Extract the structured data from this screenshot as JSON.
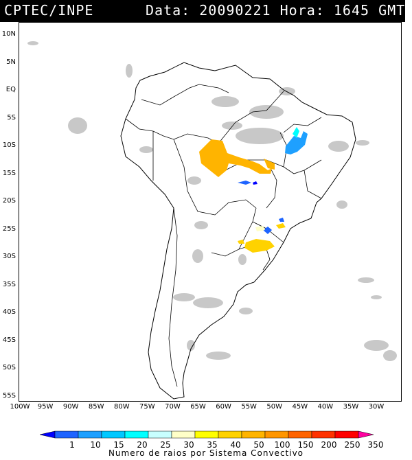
{
  "header": {
    "source": "CPTEC/INPE",
    "datetime": "Data: 20090221  Hora: 1645 GMT"
  },
  "map": {
    "lat_labels": [
      "10N",
      "5N",
      "EQ",
      "5S",
      "10S",
      "15S",
      "20S",
      "25S",
      "30S",
      "35S",
      "40S",
      "45S",
      "50S",
      "55S"
    ],
    "lon_labels": [
      "100W",
      "95W",
      "90W",
      "85W",
      "80W",
      "75W",
      "70W",
      "65W",
      "60W",
      "55W",
      "50W",
      "45W",
      "40W",
      "35W",
      "30W"
    ],
    "lat_values": [
      10,
      5,
      0,
      -5,
      -10,
      -15,
      -20,
      -25,
      -30,
      -35,
      -40,
      -45,
      -50,
      -55
    ],
    "lon_values": [
      -100,
      -95,
      -90,
      -85,
      -80,
      -75,
      -70,
      -65,
      -60,
      -55,
      -50,
      -45,
      -40,
      -35,
      -30
    ],
    "colors": {
      "cloud_gray": "#c8c8c8",
      "border": "#000000"
    }
  },
  "legend": {
    "caption": "Numero de raios por Sistema Convectivo",
    "ticks": [
      "1",
      "10",
      "15",
      "20",
      "25",
      "30",
      "35",
      "40",
      "50",
      "100",
      "150",
      "200",
      "250",
      "350"
    ],
    "colors": [
      "#0000ff",
      "#1e64ff",
      "#1ea0ff",
      "#00c8ff",
      "#00ffff",
      "#c8ffff",
      "#ffffc8",
      "#ffff00",
      "#ffd200",
      "#ffb400",
      "#ff9600",
      "#ff6400",
      "#ff3200",
      "#ff0000",
      "#ff00a0"
    ]
  }
}
